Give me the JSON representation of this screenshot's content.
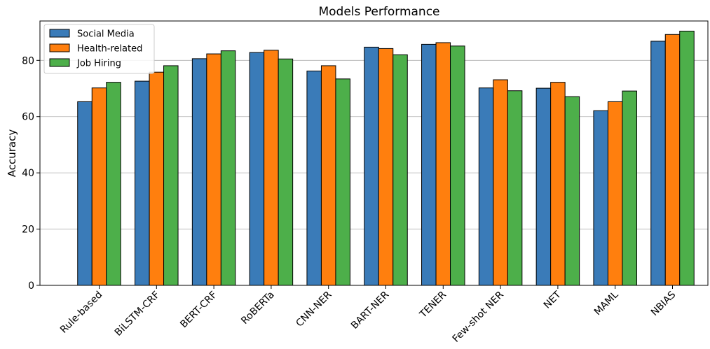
{
  "chart_data": {
    "type": "bar",
    "title": "Models Performance",
    "xlabel": "",
    "ylabel": "Accuracy",
    "ylim": [
      0,
      94
    ],
    "yticks": [
      0,
      20,
      40,
      60,
      80
    ],
    "grid": "y",
    "legend_position": "top-left",
    "categories": [
      "Rule-based",
      "BiLSTM-CRF",
      "BERT-CRF",
      "RoBERTa",
      "CNN-NER",
      "BART-NER",
      "TENER",
      "Few-shot NER",
      "NET",
      "MAML",
      "NBIAS"
    ],
    "series": [
      {
        "name": "Social Media",
        "color": "#3a7bb8",
        "values": [
          65.3,
          72.6,
          80.6,
          82.8,
          76.2,
          84.7,
          85.7,
          70.2,
          70.1,
          62.1,
          86.8
        ]
      },
      {
        "name": "Health-related",
        "color": "#ff7f0e",
        "values": [
          70.2,
          75.8,
          82.3,
          83.6,
          78.1,
          84.2,
          86.3,
          73.1,
          72.2,
          65.3,
          89.2
        ]
      },
      {
        "name": "Job Hiring",
        "color": "#4daf4a",
        "values": [
          72.2,
          78.1,
          83.4,
          80.5,
          73.4,
          82.0,
          85.1,
          69.2,
          67.1,
          69.1,
          90.4
        ]
      }
    ]
  }
}
